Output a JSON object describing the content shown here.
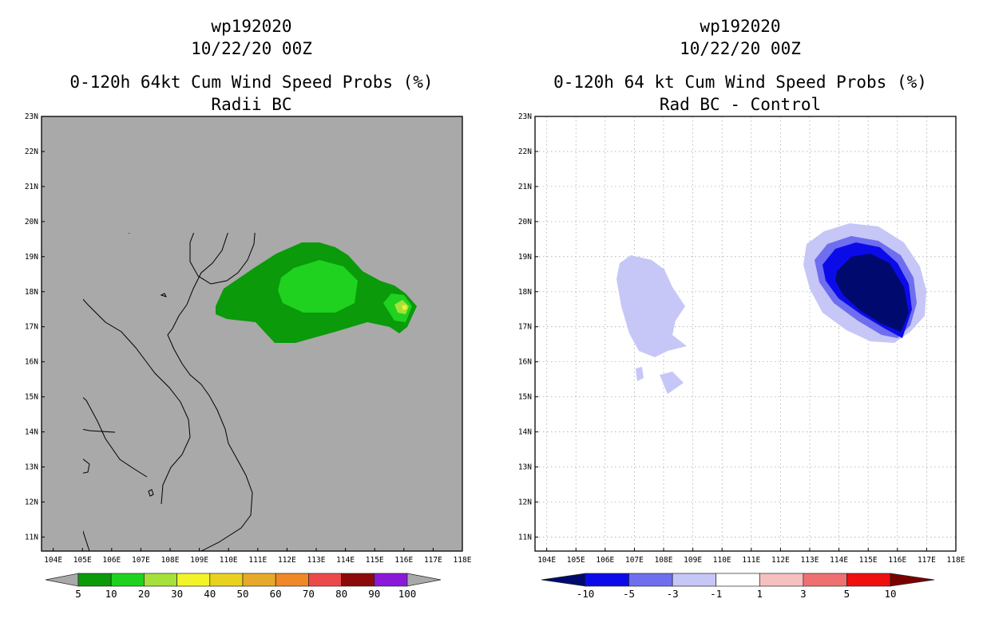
{
  "left_panel": {
    "title_line1": "wp192020",
    "title_line2": "10/22/20 00Z",
    "title_line3": "0-120h 64kt Cum Wind Speed Probs (%)",
    "title_line4": "Radii BC",
    "background_color": "#a9a9a9",
    "colorbar": {
      "labels": [
        "5",
        "10",
        "20",
        "30",
        "40",
        "50",
        "60",
        "70",
        "80",
        "90",
        "100"
      ],
      "colors": [
        "#0a9a0a",
        "#1fd21f",
        "#a6e03a",
        "#f3f32a",
        "#e8d21f",
        "#e6aa2a",
        "#ef8826",
        "#ec4a4a",
        "#8c0a0a",
        "#8a1ad8"
      ],
      "end_color": "#a9a9a9"
    }
  },
  "right_panel": {
    "title_line1": "wp192020",
    "title_line2": "10/22/20 00Z",
    "title_line3": "0-120h 64 kt Cum Wind Speed Probs (%)",
    "title_line4": "Rad BC - Control",
    "background_color": "#ffffff",
    "colorbar": {
      "labels": [
        "-10",
        "-5",
        "-3",
        "-1",
        "1",
        "3",
        "5",
        "10"
      ],
      "colors": [
        "#000a6e",
        "#0b0bea",
        "#6e6eee",
        "#c6c6f7",
        "#ffffff",
        "#f6c0c0",
        "#ef7070",
        "#ee0f0f",
        "#7a0000"
      ]
    }
  },
  "axes": {
    "lat_labels": [
      "11N",
      "12N",
      "13N",
      "14N",
      "15N",
      "16N",
      "17N",
      "18N",
      "19N",
      "20N",
      "21N",
      "22N",
      "23N"
    ],
    "lon_labels": [
      "104E",
      "105E",
      "106E",
      "107E",
      "108E",
      "109E",
      "110E",
      "111E",
      "112E",
      "113E",
      "114E",
      "115E",
      "116E",
      "117E",
      "118E"
    ],
    "lat_range": [
      10.6,
      23
    ],
    "lon_range": [
      103.6,
      118
    ]
  }
}
